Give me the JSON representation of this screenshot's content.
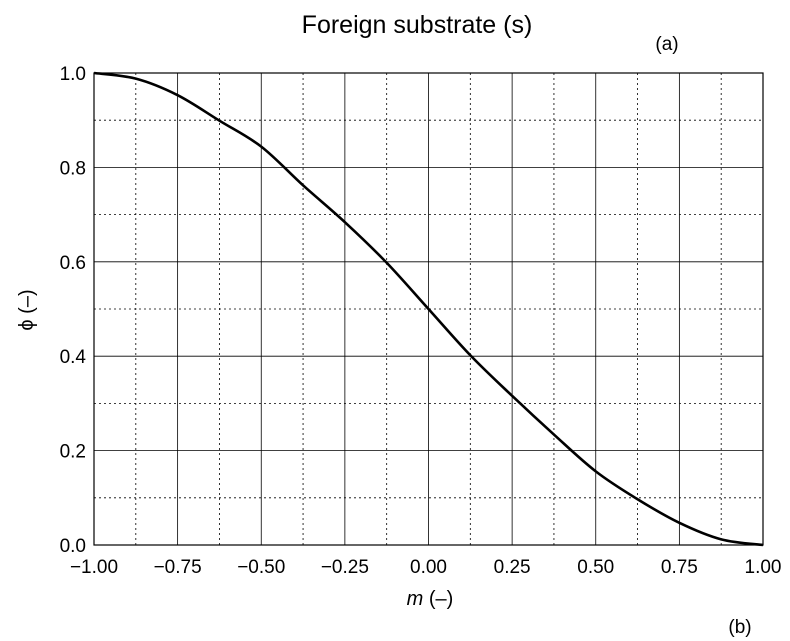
{
  "chart_data": {
    "type": "line",
    "title": "Foreign substrate (s)",
    "xlabel_var": "m",
    "xlabel_unit": " (–)",
    "ylabel": "ϕ (–)",
    "panel_label_top": "(a)",
    "panel_label_bottom": "(b)",
    "xlim": [
      -1.0,
      1.0
    ],
    "ylim": [
      0.0,
      1.0
    ],
    "x_ticks": [
      -1.0,
      -0.75,
      -0.5,
      -0.25,
      0.0,
      0.25,
      0.5,
      0.75,
      1.0
    ],
    "x_tick_labels": [
      "−1.00",
      "−0.75",
      "−0.50",
      "−0.25",
      "0.00",
      "0.25",
      "0.50",
      "0.75",
      "1.00"
    ],
    "y_ticks": [
      0.0,
      0.2,
      0.4,
      0.6,
      0.8,
      1.0
    ],
    "y_tick_labels": [
      "0.0",
      "0.2",
      "0.4",
      "0.6",
      "0.8",
      "1.0"
    ],
    "grid": true,
    "series": [
      {
        "x": [
          -1.0,
          -0.875,
          -0.75,
          -0.625,
          -0.5,
          -0.375,
          -0.25,
          -0.125,
          0.0,
          0.125,
          0.25,
          0.375,
          0.5,
          0.625,
          0.75,
          0.875,
          1.0
        ],
        "values": [
          1.0,
          0.988,
          0.953,
          0.899,
          0.844,
          0.762,
          0.684,
          0.598,
          0.5,
          0.402,
          0.316,
          0.234,
          0.156,
          0.097,
          0.047,
          0.012,
          0.0
        ],
        "color": "#000000"
      }
    ]
  }
}
